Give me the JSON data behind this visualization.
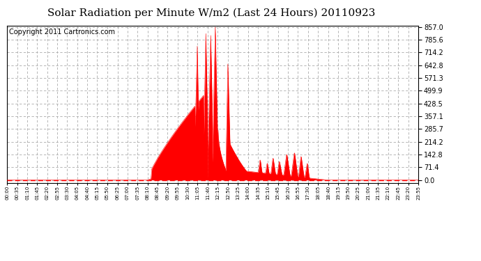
{
  "title": "Solar Radiation per Minute W/m2 (Last 24 Hours) 20110923",
  "copyright": "Copyright 2011 Cartronics.com",
  "y_ticks": [
    0.0,
    71.4,
    142.8,
    214.2,
    285.7,
    357.1,
    428.5,
    499.9,
    571.3,
    642.8,
    714.2,
    785.6,
    857.0
  ],
  "y_max": 857.0,
  "y_min": 0.0,
  "fill_color": "#FF0000",
  "line_color": "#FF0000",
  "bg_color": "#FFFFFF",
  "grid_color": "#AAAAAA",
  "dashed_line_color": "#FF0000",
  "title_fontsize": 11,
  "copyright_fontsize": 7,
  "x_tick_labels": [
    "00:00",
    "00:35",
    "01:10",
    "01:45",
    "02:20",
    "02:55",
    "03:30",
    "04:05",
    "04:40",
    "05:15",
    "05:50",
    "06:25",
    "07:00",
    "07:35",
    "08:10",
    "08:45",
    "09:20",
    "09:55",
    "10:30",
    "11:05",
    "11:40",
    "12:15",
    "12:50",
    "13:25",
    "14:00",
    "14:35",
    "15:10",
    "15:45",
    "16:20",
    "16:55",
    "17:30",
    "18:05",
    "18:40",
    "19:15",
    "19:50",
    "20:25",
    "21:00",
    "21:35",
    "22:10",
    "22:45",
    "23:20",
    "23:55"
  ]
}
